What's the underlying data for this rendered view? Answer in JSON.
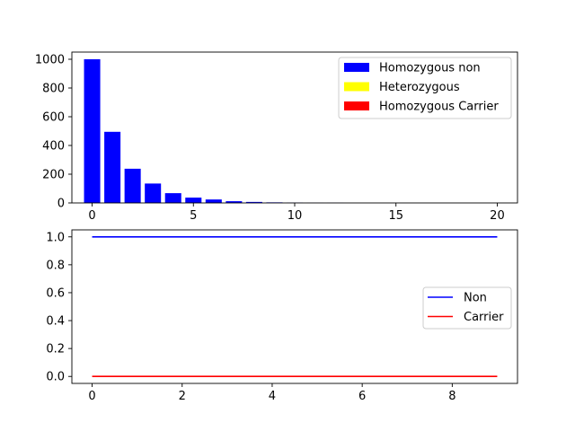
{
  "chart_data": [
    {
      "type": "bar",
      "xlim": [
        -1,
        21
      ],
      "ylim": [
        0,
        1050
      ],
      "xticks": [
        0,
        5,
        10,
        15,
        20
      ],
      "yticks": [
        0,
        200,
        400,
        600,
        800,
        1000
      ],
      "grid": false,
      "legend_position": "top-right",
      "series": [
        {
          "name": "Homozygous non",
          "color": "#0000ff",
          "x": [
            0,
            1,
            2,
            3,
            4,
            5,
            6,
            7,
            8,
            9,
            10,
            11,
            12,
            13,
            14,
            15,
            16,
            17,
            18,
            19,
            20
          ],
          "values": [
            1000,
            495,
            238,
            135,
            68,
            37,
            24,
            12,
            7,
            4,
            2,
            1,
            1,
            0,
            0,
            0,
            0,
            0,
            0,
            0,
            0
          ]
        },
        {
          "name": "Heterozygous",
          "color": "#ffff00",
          "x": [
            0,
            1,
            2,
            3,
            4,
            5,
            6,
            7,
            8,
            9,
            10,
            11,
            12,
            13,
            14,
            15,
            16,
            17,
            18,
            19,
            20
          ],
          "values": [
            0,
            0,
            0,
            0,
            0,
            0,
            0,
            0,
            0,
            0,
            0,
            0,
            0,
            0,
            0,
            0,
            0,
            0,
            0,
            0,
            0
          ]
        },
        {
          "name": "Homozygous Carrier",
          "color": "#ff0000",
          "x": [
            0,
            1,
            2,
            3,
            4,
            5,
            6,
            7,
            8,
            9,
            10,
            11,
            12,
            13,
            14,
            15,
            16,
            17,
            18,
            19,
            20
          ],
          "values": [
            0,
            0,
            0,
            0,
            0,
            0,
            0,
            0,
            0,
            0,
            0,
            0,
            0,
            0,
            0,
            0,
            0,
            0,
            0,
            0,
            0
          ]
        }
      ]
    },
    {
      "type": "line",
      "xlim": [
        -0.45,
        9.45
      ],
      "ylim": [
        -0.05,
        1.05
      ],
      "xticks": [
        0,
        2,
        4,
        6,
        8
      ],
      "yticks": [
        0.0,
        0.2,
        0.4,
        0.6,
        0.8,
        1.0
      ],
      "ytick_labels": [
        "0.0",
        "0.2",
        "0.4",
        "0.6",
        "0.8",
        "1.0"
      ],
      "grid": false,
      "legend_position": "center-right",
      "series": [
        {
          "name": "Non",
          "color": "#0000ff",
          "x": [
            0,
            1,
            2,
            3,
            4,
            5,
            6,
            7,
            8,
            9
          ],
          "values": [
            1,
            1,
            1,
            1,
            1,
            1,
            1,
            1,
            1,
            1
          ]
        },
        {
          "name": "Carrier",
          "color": "#ff0000",
          "x": [
            0,
            1,
            2,
            3,
            4,
            5,
            6,
            7,
            8,
            9
          ],
          "values": [
            0,
            0,
            0,
            0,
            0,
            0,
            0,
            0,
            0,
            0
          ]
        }
      ]
    }
  ]
}
